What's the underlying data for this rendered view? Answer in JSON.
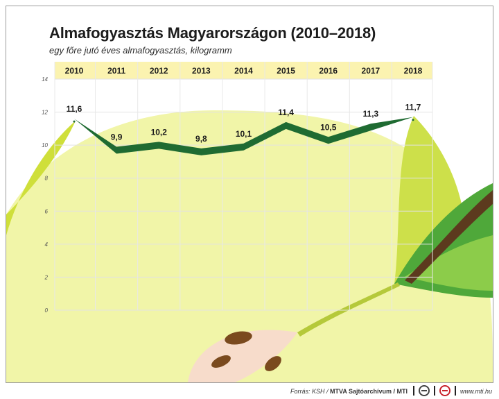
{
  "title": "Almafogyasztás Magyarországon (2010–2018)",
  "subtitle": "egy főre jutó éves almafogyasztás, kilogramm",
  "chart_data": {
    "type": "line",
    "title": "Almafogyasztás Magyarországon (2010–2018)",
    "subtitle": "egy főre jutó éves almafogyasztás, kilogramm",
    "categories": [
      "2010",
      "2011",
      "2012",
      "2013",
      "2014",
      "2015",
      "2016",
      "2017",
      "2018"
    ],
    "values": [
      11.6,
      9.9,
      10.2,
      9.8,
      10.1,
      11.4,
      10.5,
      11.3,
      11.7
    ],
    "value_labels": [
      "11,6",
      "9,9",
      "10,2",
      "9,8",
      "10,1",
      "11,4",
      "10,5",
      "11,3",
      "11,7"
    ],
    "yticks": [
      "0",
      "2",
      "4",
      "6",
      "8",
      "10",
      "12",
      "14"
    ],
    "ylim": [
      0,
      14
    ],
    "xlabel": "",
    "ylabel": "",
    "grid": true,
    "x_axis_position": "top"
  },
  "colors": {
    "line": "#1f6b32",
    "header_band": "#fbf3b0",
    "apple_yellow": "#eef3a0",
    "apple_green": "#cfe04a",
    "leaf_green": "#4fa83a",
    "stem_brown": "#5c3a1e"
  },
  "footer": {
    "source_prefix": "Forrás: KSH /",
    "source_bold": "MTVA Sajtóarchívum / MTI",
    "url": "www.mti.hu",
    "logos": [
      "mti-logo-icon",
      "mtva-logo-icon"
    ]
  }
}
